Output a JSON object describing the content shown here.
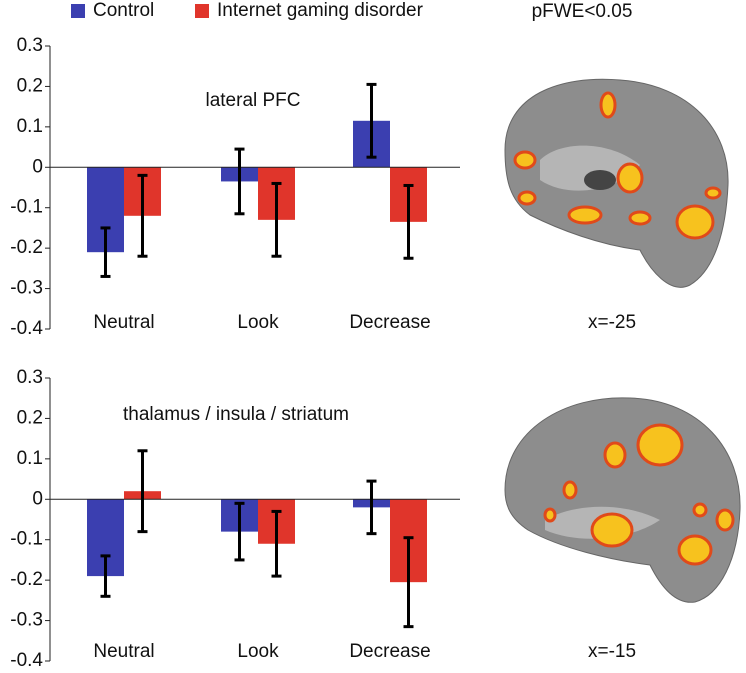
{
  "chart_data": [
    {
      "type": "bar",
      "annotation": "lateral PFC",
      "categories": [
        "Neutral",
        "Look",
        "Decrease"
      ],
      "series": [
        {
          "name": "Control",
          "color": "#3b3fb0",
          "values": [
            -0.21,
            -0.035,
            0.115
          ],
          "errors": [
            0.06,
            0.08,
            0.09
          ]
        },
        {
          "name": "Internet gaming disorder",
          "color": "#e0352b",
          "values": [
            -0.12,
            -0.13,
            -0.135
          ],
          "errors": [
            0.1,
            0.09,
            0.09
          ]
        }
      ],
      "ylim": [
        -0.4,
        0.3
      ],
      "yticks": [
        0.3,
        0.2,
        0.1,
        0,
        -0.1,
        -0.2,
        -0.3,
        -0.4
      ]
    },
    {
      "type": "bar",
      "annotation": "thalamus / insula / striatum",
      "categories": [
        "Neutral",
        "Look",
        "Decrease"
      ],
      "series": [
        {
          "color": "#3b3fb0",
          "values": [
            -0.19,
            -0.08,
            -0.02
          ],
          "errors": [
            0.05,
            0.07,
            0.065
          ]
        },
        {
          "color": "#e0352b",
          "values": [
            0.02,
            -0.11,
            -0.205
          ],
          "errors": [
            0.1,
            0.08,
            0.11
          ]
        }
      ],
      "ylim": [
        -0.4,
        0.3
      ],
      "yticks": [
        0.3,
        0.2,
        0.1,
        0,
        -0.1,
        -0.2,
        -0.3,
        -0.4
      ]
    }
  ],
  "threshold_label": "pFWE<0.05",
  "brain_images": [
    {
      "label": "x=-25"
    },
    {
      "label": "x=-15"
    }
  ]
}
